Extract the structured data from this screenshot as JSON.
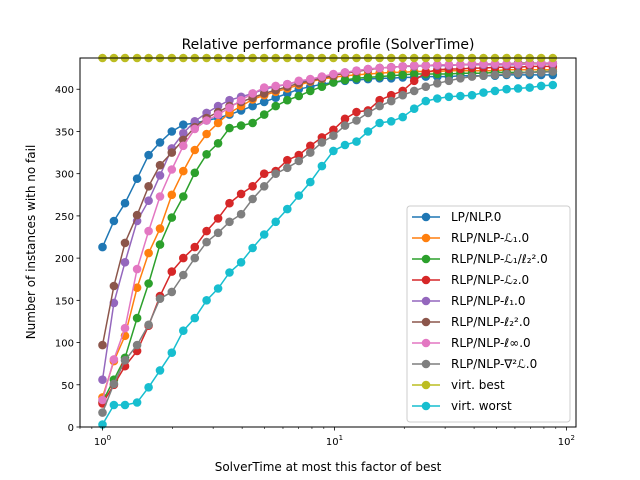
{
  "chart_data": {
    "type": "line",
    "title": "Relative performance profile (SolverTime)",
    "xlabel": "SolverTime at most this factor of best",
    "ylabel": "Number of instances with no fail",
    "xscale": "log",
    "xlim": [
      0.8,
      110
    ],
    "ylim": [
      0,
      437
    ],
    "grid": false,
    "legend_position": "lower-right",
    "x_ticks": [
      {
        "value": 1,
        "base": "10",
        "exp": "0"
      },
      {
        "value": 10,
        "base": "10",
        "exp": "1"
      },
      {
        "value": 100,
        "base": "10",
        "exp": "2"
      }
    ],
    "y_ticks": [
      0,
      50,
      100,
      150,
      200,
      250,
      300,
      350,
      400
    ],
    "x": [
      1.0,
      1.12,
      1.25,
      1.41,
      1.58,
      1.77,
      1.99,
      2.23,
      2.5,
      2.81,
      3.15,
      3.53,
      3.96,
      4.44,
      4.98,
      5.58,
      6.26,
      7.02,
      7.87,
      8.83,
      9.9,
      11.1,
      12.45,
      13.96,
      15.66,
      17.56,
      19.69,
      22.08,
      24.76,
      27.77,
      31.14,
      34.92,
      39.16,
      43.92,
      49.25,
      55.23,
      61.94,
      69.46,
      77.9,
      87.36
    ],
    "series": [
      {
        "name": "LP/NLP.0",
        "color": "#1f77b4",
        "values": [
          213,
          244,
          265,
          294,
          322,
          337,
          350,
          358,
          360,
          363,
          366,
          370,
          375,
          380,
          385,
          390,
          395,
          400,
          403,
          406,
          408,
          410,
          411,
          412,
          413,
          413,
          414,
          414,
          415,
          415,
          415,
          416,
          416,
          416,
          416,
          417,
          417,
          417,
          417,
          417
        ]
      },
      {
        "name": "RLP/NLP-ℒ₁.0",
        "color": "#ff7f0e",
        "values": [
          35,
          78,
          108,
          165,
          206,
          235,
          275,
          303,
          328,
          347,
          360,
          372,
          380,
          388,
          393,
          397,
          401,
          405,
          409,
          412,
          414,
          416,
          417,
          418,
          419,
          420,
          420,
          421,
          421,
          421,
          422,
          422,
          422,
          422,
          422,
          423,
          423,
          423,
          423,
          423
        ]
      },
      {
        "name": "RLP/NLP-ℒ₁/ℓ₂².0",
        "color": "#2ca02c",
        "values": [
          30,
          56,
          82,
          129,
          170,
          216,
          248,
          273,
          301,
          323,
          336,
          354,
          357,
          360,
          370,
          380,
          387,
          392,
          398,
          403,
          408,
          411,
          413,
          414,
          415,
          416,
          417,
          418,
          418,
          418,
          418,
          419,
          419,
          419,
          420,
          420,
          420,
          420,
          421,
          421
        ]
      },
      {
        "name": "RLP/NLP-ℒ₂.0",
        "color": "#d62728",
        "values": [
          28,
          50,
          72,
          90,
          120,
          155,
          184,
          200,
          213,
          232,
          247,
          265,
          276,
          285,
          300,
          303,
          316,
          322,
          333,
          343,
          352,
          365,
          373,
          375,
          387,
          393,
          398,
          410,
          420,
          423,
          424,
          424,
          425,
          425,
          426,
          426,
          426,
          427,
          427,
          427
        ]
      },
      {
        "name": "RLP/NLP-ℓ₁.0",
        "color": "#9467bd",
        "values": [
          56,
          147,
          195,
          244,
          268,
          298,
          330,
          348,
          362,
          372,
          380,
          387,
          391,
          395,
          400,
          403,
          406,
          409,
          411,
          414,
          417,
          420,
          422,
          424,
          425,
          426,
          427,
          427,
          428,
          428,
          428,
          429,
          429,
          429,
          429,
          429,
          429,
          430,
          430,
          430
        ]
      },
      {
        "name": "RLP/NLP-ℓ₂².0",
        "color": "#8c564b",
        "values": [
          97,
          167,
          218,
          251,
          285,
          310,
          325,
          340,
          355,
          366,
          373,
          380,
          385,
          390,
          395,
          399,
          403,
          407,
          410,
          413,
          416,
          419,
          421,
          423,
          425,
          426,
          427,
          428,
          428,
          429,
          429,
          429,
          430,
          430,
          430,
          430,
          431,
          431,
          431,
          431
        ]
      },
      {
        "name": "RLP/NLP-ℓ∞.0",
        "color": "#e377c2",
        "values": [
          32,
          80,
          117,
          187,
          232,
          273,
          305,
          333,
          353,
          363,
          370,
          378,
          387,
          395,
          402,
          404,
          406,
          410,
          412,
          415,
          418,
          420,
          422,
          424,
          425,
          426,
          427,
          428,
          428,
          429,
          429,
          429,
          430,
          430,
          430,
          430,
          430,
          430,
          431,
          431
        ]
      },
      {
        "name": "RLP/NLP-∇²ℒ.0",
        "color": "#7f7f7f",
        "values": [
          17,
          51,
          79,
          97,
          121,
          152,
          160,
          180,
          200,
          219,
          230,
          243,
          252,
          270,
          285,
          300,
          307,
          315,
          325,
          337,
          345,
          357,
          363,
          372,
          380,
          386,
          393,
          398,
          403,
          407,
          410,
          413,
          415,
          416,
          417,
          418,
          419,
          420,
          420,
          421
        ]
      },
      {
        "name": "virt. best",
        "color": "#bcbd22",
        "values": [
          437,
          437,
          437,
          437,
          437,
          437,
          437,
          437,
          437,
          437,
          437,
          437,
          437,
          437,
          437,
          437,
          437,
          437,
          437,
          437,
          437,
          437,
          437,
          437,
          437,
          437,
          437,
          437,
          437,
          437,
          437,
          437,
          437,
          437,
          437,
          437,
          437,
          437,
          437,
          437
        ]
      },
      {
        "name": "virt. worst",
        "color": "#17becf",
        "values": [
          3,
          26,
          26,
          29,
          47,
          67,
          88,
          114,
          129,
          150,
          164,
          183,
          195,
          212,
          228,
          243,
          258,
          274,
          290,
          309,
          327,
          334,
          338,
          350,
          360,
          362,
          367,
          377,
          386,
          389,
          391,
          392,
          393,
          396,
          398,
          400,
          401,
          402,
          404,
          405
        ]
      }
    ]
  }
}
